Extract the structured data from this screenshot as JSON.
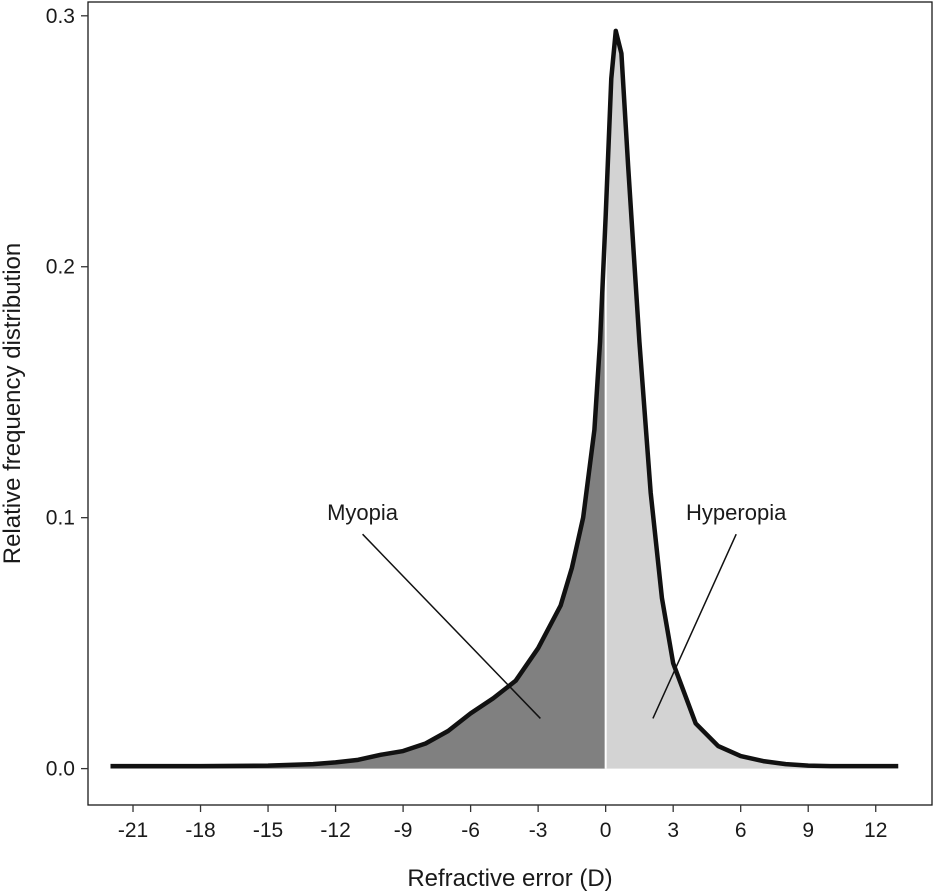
{
  "chart_data": {
    "type": "area",
    "title": "",
    "xlabel": "Refractive error (D)",
    "ylabel": "Relative frequency distribution",
    "xlim": [
      -23,
      14.5
    ],
    "ylim": [
      -0.0145,
      0.3055
    ],
    "x_ticks": [
      -21,
      -18,
      -15,
      -12,
      -9,
      -6,
      -3,
      0,
      3,
      6,
      9,
      12
    ],
    "x_tick_labels": [
      "-21",
      "-18",
      "-15",
      "-12",
      "-9",
      "-6",
      "-3",
      "0",
      "3",
      "6",
      "9",
      "12"
    ],
    "y_ticks": [
      0.0,
      0.1,
      0.2,
      0.3
    ],
    "y_tick_labels": [
      "0.0",
      "0.1",
      "0.2",
      "0.3"
    ],
    "grid": false,
    "split_at": 0,
    "colors": {
      "myopia_fill": "#808080",
      "hyperopia_fill": "#d3d3d3",
      "curve": "#111111",
      "divider": "#ffffff"
    },
    "series": [
      {
        "points": [
          [
            -22,
            0.001
          ],
          [
            -18,
            0.001
          ],
          [
            -15,
            0.0012
          ],
          [
            -13,
            0.0018
          ],
          [
            -12,
            0.0025
          ],
          [
            -11,
            0.0035
          ],
          [
            -10,
            0.0055
          ],
          [
            -9,
            0.007
          ],
          [
            -8,
            0.01
          ],
          [
            -7,
            0.015
          ],
          [
            -6,
            0.022
          ],
          [
            -5,
            0.028
          ],
          [
            -4,
            0.035
          ],
          [
            -3,
            0.048
          ],
          [
            -2,
            0.065
          ],
          [
            -1.5,
            0.08
          ],
          [
            -1,
            0.1
          ],
          [
            -0.5,
            0.135
          ],
          [
            -0.25,
            0.17
          ],
          [
            0,
            0.22
          ],
          [
            0.25,
            0.275
          ],
          [
            0.45,
            0.294
          ],
          [
            0.7,
            0.285
          ],
          [
            1,
            0.24
          ],
          [
            1.5,
            0.17
          ],
          [
            2,
            0.11
          ],
          [
            2.5,
            0.068
          ],
          [
            3,
            0.042
          ],
          [
            4,
            0.018
          ],
          [
            5,
            0.009
          ],
          [
            6,
            0.005
          ],
          [
            7,
            0.003
          ],
          [
            8,
            0.0018
          ],
          [
            9,
            0.0012
          ],
          [
            10,
            0.001
          ],
          [
            13,
            0.001
          ]
        ]
      }
    ],
    "annotations": [
      {
        "text": "Myopia",
        "label_at": [
          -10.8,
          0.099
        ],
        "arrow_to": [
          -2.9,
          0.02
        ]
      },
      {
        "text": "Hyperopia",
        "label_at": [
          5.8,
          0.099
        ],
        "arrow_to": [
          2.1,
          0.02
        ]
      }
    ]
  }
}
